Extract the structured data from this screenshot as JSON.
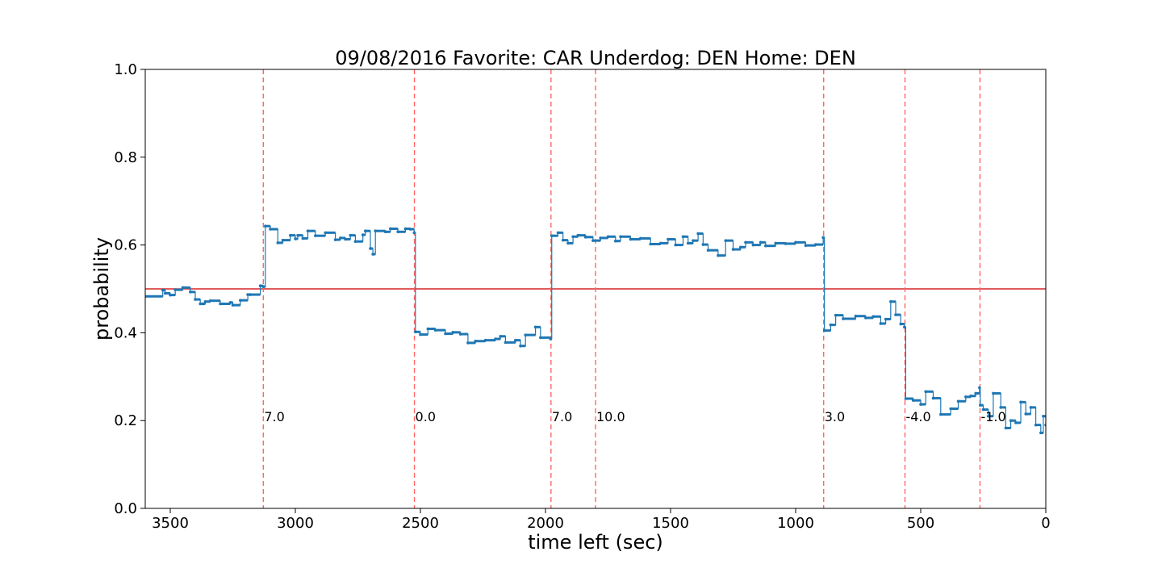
{
  "chart_data": {
    "type": "line",
    "title": "09/08/2016 Favorite: CAR Underdog: DEN Home: DEN",
    "xlabel": "time left (sec)",
    "ylabel": "probability",
    "xlim": [
      3600,
      0
    ],
    "ylim": [
      0.0,
      1.0
    ],
    "x_ticks": [
      3500,
      3000,
      2500,
      2000,
      1500,
      1000,
      500,
      0
    ],
    "x_tick_labels": [
      "3500",
      "3000",
      "2500",
      "2000",
      "1500",
      "1000",
      "500",
      "0"
    ],
    "y_ticks": [
      0.0,
      0.2,
      0.4,
      0.6,
      0.8,
      1.0
    ],
    "y_tick_labels": [
      "0.0",
      "0.2",
      "0.4",
      "0.6",
      "0.8",
      "1.0"
    ],
    "reference_line": {
      "y": 0.5,
      "color": "#d62728"
    },
    "series_color": "#1f77b4",
    "series": [
      {
        "type": "step",
        "x": [
          3600,
          3530,
          3520,
          3500,
          3480,
          3450,
          3420,
          3400,
          3380,
          3370,
          3360,
          3340,
          3300,
          3260,
          3250,
          3220,
          3190,
          3180,
          3140,
          3128,
          3120,
          3100,
          3070,
          3050,
          3020,
          3000,
          2990,
          2970,
          2950,
          2920,
          2880,
          2840,
          2820,
          2800,
          2780,
          2760,
          2730,
          2720,
          2700,
          2690,
          2680,
          2640,
          2620,
          2590,
          2560,
          2540,
          2525,
          2520,
          2500,
          2470,
          2440,
          2400,
          2370,
          2340,
          2310,
          2280,
          2240,
          2200,
          2180,
          2160,
          2120,
          2100,
          2080,
          2040,
          2020,
          1980,
          1975,
          1950,
          1930,
          1910,
          1890,
          1870,
          1840,
          1810,
          1780,
          1750,
          1720,
          1700,
          1660,
          1620,
          1580,
          1540,
          1510,
          1480,
          1450,
          1430,
          1410,
          1390,
          1370,
          1350,
          1310,
          1280,
          1250,
          1220,
          1200,
          1170,
          1140,
          1120,
          1080,
          1040,
          1000,
          960,
          920,
          890,
          885,
          860,
          840,
          810,
          760,
          720,
          690,
          660,
          640,
          620,
          600,
          580,
          565,
          560,
          530,
          500,
          480,
          450,
          420,
          380,
          350,
          320,
          300,
          280,
          265,
          262,
          250,
          230,
          210,
          180,
          160,
          140,
          120,
          100,
          80,
          60,
          40,
          20,
          10,
          0
        ],
        "y": [
          0.483,
          0.497,
          0.49,
          0.486,
          0.498,
          0.503,
          0.493,
          0.476,
          0.466,
          0.466,
          0.471,
          0.473,
          0.466,
          0.469,
          0.463,
          0.474,
          0.487,
          0.487,
          0.507,
          0.505,
          0.643,
          0.636,
          0.605,
          0.611,
          0.622,
          0.614,
          0.622,
          0.615,
          0.632,
          0.621,
          0.628,
          0.612,
          0.616,
          0.613,
          0.622,
          0.608,
          0.623,
          0.632,
          0.592,
          0.579,
          0.632,
          0.63,
          0.637,
          0.63,
          0.637,
          0.636,
          0.628,
          0.402,
          0.396,
          0.409,
          0.406,
          0.398,
          0.401,
          0.397,
          0.377,
          0.381,
          0.383,
          0.386,
          0.392,
          0.378,
          0.383,
          0.37,
          0.395,
          0.413,
          0.389,
          0.386,
          0.621,
          0.628,
          0.611,
          0.604,
          0.619,
          0.622,
          0.618,
          0.61,
          0.616,
          0.619,
          0.609,
          0.619,
          0.613,
          0.615,
          0.602,
          0.604,
          0.613,
          0.6,
          0.619,
          0.604,
          0.61,
          0.626,
          0.601,
          0.588,
          0.576,
          0.61,
          0.59,
          0.595,
          0.606,
          0.6,
          0.606,
          0.598,
          0.604,
          0.603,
          0.606,
          0.599,
          0.601,
          0.617,
          0.405,
          0.418,
          0.44,
          0.432,
          0.438,
          0.434,
          0.437,
          0.421,
          0.431,
          0.471,
          0.441,
          0.42,
          0.413,
          0.25,
          0.246,
          0.237,
          0.266,
          0.251,
          0.214,
          0.227,
          0.244,
          0.254,
          0.256,
          0.262,
          0.275,
          0.235,
          0.225,
          0.21,
          0.262,
          0.23,
          0.183,
          0.2,
          0.195,
          0.242,
          0.215,
          0.23,
          0.19,
          0.172,
          0.21,
          0.19
        ]
      }
    ],
    "event_lines": [
      {
        "x": 3128,
        "label": "7.0"
      },
      {
        "x": 2524,
        "label": "0.0"
      },
      {
        "x": 1978,
        "label": "7.0"
      },
      {
        "x": 1800,
        "label": "10.0"
      },
      {
        "x": 888,
        "label": "3.0"
      },
      {
        "x": 563,
        "label": "-4.0"
      },
      {
        "x": 263,
        "label": "-1.0"
      }
    ],
    "event_line_color": "#ff6666",
    "event_label_y": 0.2,
    "grid": false,
    "legend": "none"
  }
}
